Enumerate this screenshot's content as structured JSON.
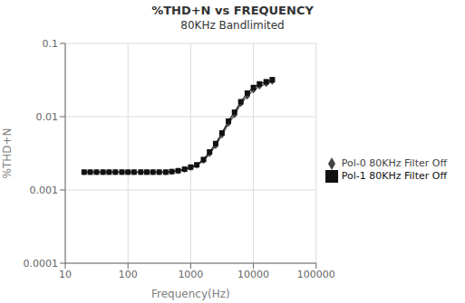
{
  "chart_data": {
    "type": "line",
    "title": "%THD+N vs FREQUENCY",
    "subtitle": "80KHz Bandlimited",
    "x_label": "Frequency(Hz)",
    "y_label": "%THD+N",
    "x": [
      20,
      25,
      31.5,
      40,
      50,
      63,
      80,
      100,
      125,
      160,
      200,
      250,
      315,
      400,
      500,
      630,
      800,
      1000,
      1250,
      1600,
      2000,
      2500,
      3150,
      4000,
      5000,
      6300,
      8000,
      10000,
      12500,
      16000,
      20000
    ],
    "series": [
      {
        "name": "Pol-0 80KHz Filter Off",
        "color": "#444444",
        "marker": "diamond",
        "values": [
          0.00175,
          0.00175,
          0.00175,
          0.00175,
          0.00175,
          0.00175,
          0.00175,
          0.00175,
          0.00175,
          0.00175,
          0.00175,
          0.00175,
          0.00175,
          0.00175,
          0.00178,
          0.00182,
          0.0019,
          0.002,
          0.00215,
          0.0025,
          0.0031,
          0.004,
          0.0056,
          0.008,
          0.0105,
          0.015,
          0.019,
          0.023,
          0.026,
          0.028,
          0.03
        ]
      },
      {
        "name": "Pol-1 80KHz Filter Off",
        "color": "#111111",
        "marker": "square",
        "values": [
          0.00175,
          0.00175,
          0.00175,
          0.00175,
          0.00175,
          0.00175,
          0.00175,
          0.00175,
          0.00175,
          0.00175,
          0.00175,
          0.00175,
          0.00175,
          0.00175,
          0.00178,
          0.00183,
          0.00192,
          0.00205,
          0.0022,
          0.0026,
          0.0033,
          0.0043,
          0.006,
          0.0087,
          0.0115,
          0.016,
          0.021,
          0.025,
          0.028,
          0.03,
          0.032
        ]
      }
    ],
    "xlim": [
      10,
      100000
    ],
    "ylim": [
      0.0001,
      0.1
    ],
    "xticks": [
      10,
      100,
      1000,
      10000,
      100000
    ],
    "yticks": [
      0.0001,
      0.001,
      0.01,
      0.1
    ],
    "log": true,
    "grid": true,
    "legend": "right"
  }
}
